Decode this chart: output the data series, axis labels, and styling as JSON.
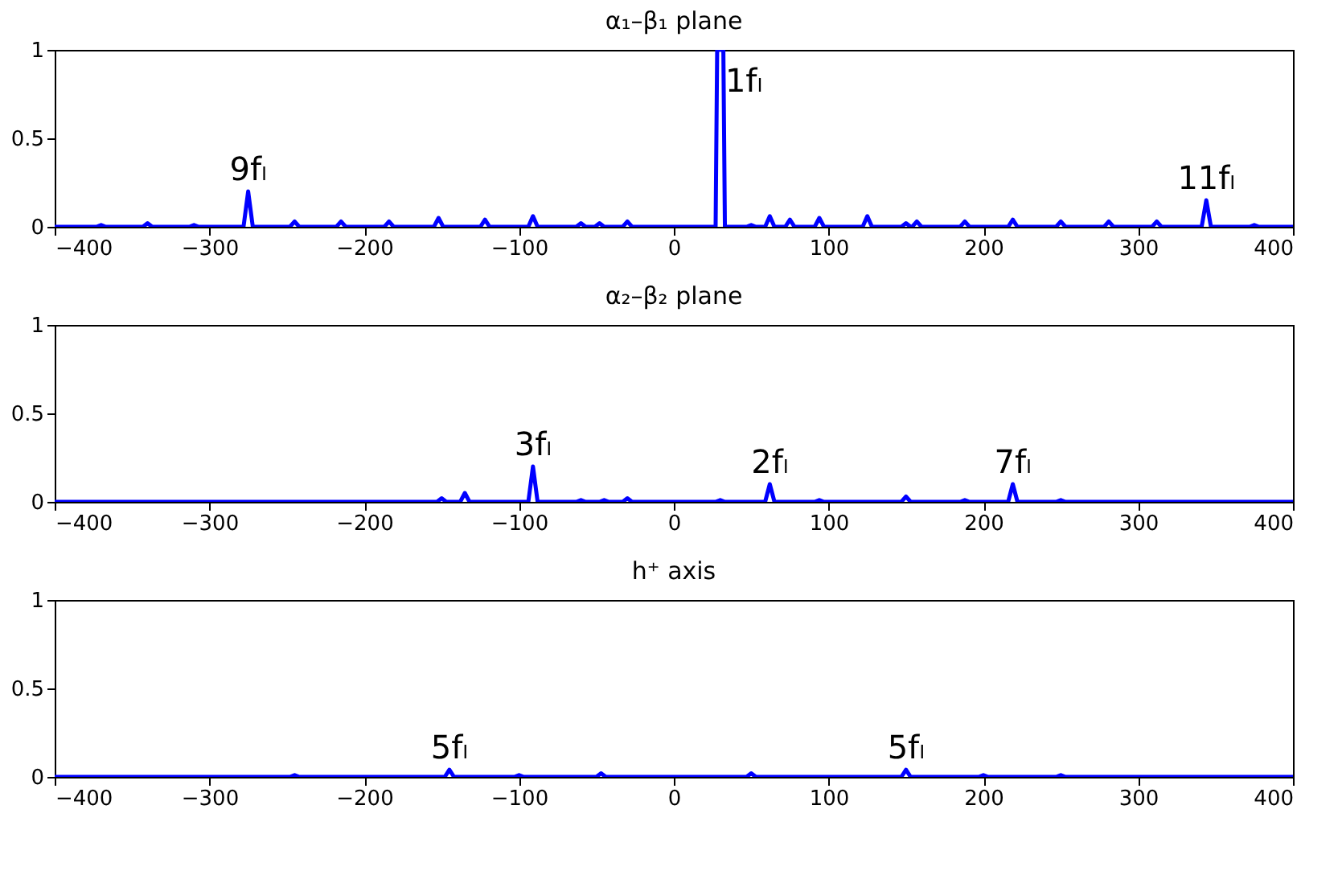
{
  "chart_data": [
    {
      "type": "line",
      "title": "α₁–β₁ plane",
      "xlim": [
        -400,
        400
      ],
      "xticks": [
        -400,
        -300,
        -200,
        -100,
        0,
        100,
        200,
        300,
        400
      ],
      "ylim": [
        0,
        1
      ],
      "yticks": [
        0,
        0.5,
        1
      ],
      "grid": false,
      "series": [
        {
          "color": "#0000ff",
          "x": [
            -400,
            -373,
            -370,
            -367,
            -343,
            -340,
            -337,
            -313,
            -310,
            -307,
            -278,
            -275,
            -272,
            -248,
            -245,
            -242,
            -218,
            -215,
            -212,
            -187,
            -184,
            -181,
            -155,
            -152,
            -149,
            -125,
            -122,
            -119,
            -94,
            -91,
            -88,
            -63,
            -60,
            -57,
            -51,
            -48,
            -45,
            -33,
            -30,
            -27,
            27,
            28,
            32,
            33,
            47,
            50,
            53,
            59,
            62,
            65,
            72,
            75,
            78,
            91,
            94,
            97,
            122,
            125,
            128,
            147,
            150,
            153,
            154,
            157,
            160,
            185,
            188,
            191,
            216,
            219,
            222,
            247,
            250,
            253,
            278,
            281,
            284,
            309,
            312,
            315,
            341,
            344,
            347,
            372,
            375,
            378,
            400
          ],
          "values": [
            0,
            0,
            0.01,
            0,
            0,
            0.02,
            0,
            0,
            0.01,
            0,
            0,
            0.2,
            0,
            0,
            0.03,
            0,
            0,
            0.03,
            0,
            0,
            0.03,
            0,
            0,
            0.05,
            0,
            0,
            0.04,
            0,
            0,
            0.06,
            0,
            0,
            0.02,
            0,
            0,
            0.02,
            0,
            0,
            0.03,
            0,
            0,
            1,
            1,
            0,
            0,
            0.01,
            0,
            0,
            0.06,
            0,
            0,
            0.04,
            0,
            0,
            0.05,
            0,
            0,
            0.06,
            0,
            0,
            0.02,
            0,
            0,
            0.03,
            0,
            0,
            0.03,
            0,
            0,
            0.04,
            0,
            0,
            0.03,
            0,
            0,
            0.03,
            0,
            0,
            0.03,
            0,
            0,
            0.15,
            0,
            0,
            0.01,
            0,
            0
          ]
        }
      ],
      "annotations": [
        {
          "text": "9fₗ",
          "x": -275,
          "y": 0.2
        },
        "1fₗ",
        {
          "text": "11fₗ",
          "x": 344,
          "y": 0.15
        }
      ]
    },
    {
      "type": "line",
      "title": "α₂–β₂ plane",
      "xlim": [
        -400,
        400
      ],
      "xticks": [
        -400,
        -300,
        -200,
        -100,
        0,
        100,
        200,
        300,
        400
      ],
      "ylim": [
        0,
        1
      ],
      "yticks": [
        0,
        0.5,
        1
      ],
      "grid": false,
      "series": [
        {
          "color": "#0000ff",
          "x": [
            -400,
            -153,
            -150,
            -147,
            -138,
            -135,
            -132,
            -94,
            -91,
            -88,
            -63,
            -60,
            -57,
            -48,
            -45,
            -42,
            -33,
            -30,
            -27,
            27,
            30,
            33,
            59,
            62,
            65,
            91,
            94,
            97,
            147,
            150,
            153,
            185,
            188,
            191,
            216,
            219,
            222,
            247,
            250,
            253,
            400
          ],
          "values": [
            0,
            0,
            0.02,
            0,
            0,
            0.05,
            0,
            0,
            0.2,
            0,
            0,
            0.01,
            0,
            0,
            0.01,
            0,
            0,
            0.02,
            0,
            0,
            0.01,
            0,
            0,
            0.1,
            0,
            0,
            0.01,
            0,
            0,
            0.03,
            0,
            0,
            0.01,
            0,
            0,
            0.1,
            0,
            0,
            0.01,
            0,
            0
          ]
        }
      ],
      "annotations": [
        {
          "text": "3fₗ",
          "x": -91,
          "y": 0.2
        },
        {
          "text": "2fₗ",
          "x": 62,
          "y": 0.1
        },
        {
          "text": "7fₗ",
          "x": 219,
          "y": 0.1
        }
      ]
    },
    {
      "type": "line",
      "title": "h⁺ axis",
      "xlim": [
        -400,
        400
      ],
      "xticks": [
        -400,
        -300,
        -200,
        -100,
        0,
        100,
        200,
        300,
        400
      ],
      "ylim": [
        0,
        1
      ],
      "yticks": [
        0,
        0.5,
        1
      ],
      "grid": false,
      "series": [
        {
          "color": "#0000ff",
          "x": [
            -400,
            -248,
            -245,
            -242,
            -148,
            -145,
            -142,
            -103,
            -100,
            -97,
            -50,
            -47,
            -44,
            47,
            50,
            53,
            147,
            150,
            153,
            197,
            200,
            203,
            247,
            250,
            253,
            400
          ],
          "values": [
            0,
            0,
            0.01,
            0,
            0,
            0.04,
            0,
            0,
            0.01,
            0,
            0,
            0.02,
            0,
            0,
            0.02,
            0,
            0,
            0.04,
            0,
            0,
            0.01,
            0,
            0,
            0.01,
            0,
            0
          ]
        }
      ],
      "annotations": [
        {
          "text": "5fₗ",
          "x": -145,
          "y": 0.04
        },
        {
          "text": "5fₗ",
          "x": 150,
          "y": 0.04
        }
      ]
    }
  ]
}
